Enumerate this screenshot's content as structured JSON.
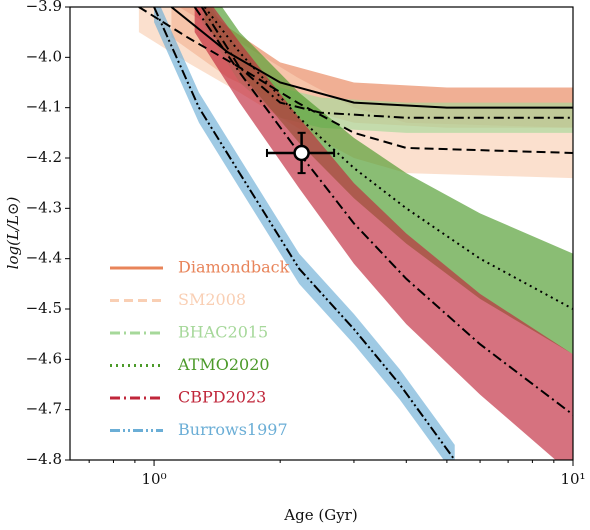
{
  "chart_data": {
    "type": "band-line",
    "xlabel": "Age (Gyr)",
    "ylabel": "log(L/L⊙)",
    "xscale": "log",
    "xlim": [
      0.63,
      10
    ],
    "ylim": [
      -4.8,
      -3.9
    ],
    "xticks": [
      {
        "value": 1,
        "label": "10⁰"
      },
      {
        "value": 10,
        "label": "10¹"
      }
    ],
    "xticks_minor": [
      0.7,
      0.8,
      0.9,
      2,
      3,
      4,
      5,
      6,
      7,
      8,
      9
    ],
    "yticks": [
      {
        "value": -3.9,
        "label": "−3.9"
      },
      {
        "value": -4.0,
        "label": "−4.0"
      },
      {
        "value": -4.1,
        "label": "−4.1"
      },
      {
        "value": -4.2,
        "label": "−4.2"
      },
      {
        "value": -4.3,
        "label": "−4.3"
      },
      {
        "value": -4.4,
        "label": "−4.4"
      },
      {
        "value": -4.5,
        "label": "−4.5"
      },
      {
        "value": -4.6,
        "label": "−4.6"
      },
      {
        "value": -4.7,
        "label": "−4.7"
      },
      {
        "value": -4.8,
        "label": "−4.8"
      }
    ],
    "line_color": "#000000",
    "legend": "lower left",
    "series": [
      {
        "name": "Diamondback",
        "color": "#e8845a",
        "dash": "",
        "x": [
          1.1,
          1.5,
          2.0,
          3.0,
          5.0,
          10
        ],
        "values": [
          -3.9,
          -3.99,
          -4.05,
          -4.09,
          -4.1,
          -4.1
        ],
        "lower": [
          -3.96,
          -4.04,
          -4.09,
          -4.13,
          -4.14,
          -4.14
        ],
        "upper": [
          -3.84,
          -3.94,
          -4.01,
          -4.05,
          -4.06,
          -4.06
        ]
      },
      {
        "name": "SM2008",
        "color": "#f9cfb4",
        "dash": "9 5",
        "x": [
          0.92,
          1.2,
          1.6,
          2.2,
          3.0,
          4.0,
          10
        ],
        "values": [
          -3.9,
          -3.96,
          -4.02,
          -4.09,
          -4.15,
          -4.18,
          -4.19
        ],
        "lower": [
          -3.95,
          -4.01,
          -4.07,
          -4.14,
          -4.2,
          -4.23,
          -4.24
        ],
        "upper": [
          -3.85,
          -3.91,
          -3.97,
          -4.04,
          -4.1,
          -4.13,
          -4.14
        ]
      },
      {
        "name": "BHAC2015",
        "color": "#a6d89a",
        "dash": "10 4 2 4",
        "x": [
          1.3,
          1.6,
          2.0,
          2.5,
          4.0,
          10
        ],
        "values": [
          -3.9,
          -4.02,
          -4.09,
          -4.11,
          -4.12,
          -4.12
        ],
        "lower": [
          -3.93,
          -4.05,
          -4.12,
          -4.14,
          -4.15,
          -4.15
        ],
        "upper": [
          -3.87,
          -3.99,
          -4.06,
          -4.08,
          -4.09,
          -4.09
        ]
      },
      {
        "name": "ATMO2020",
        "color": "#4c9a2a",
        "dash": "2 4",
        "x": [
          1.32,
          1.6,
          2.22,
          3.0,
          4.0,
          6.0,
          10
        ],
        "values": [
          -3.9,
          -3.99,
          -4.12,
          -4.22,
          -4.3,
          -4.4,
          -4.5
        ],
        "lower": [
          -3.93,
          -4.03,
          -4.17,
          -4.28,
          -4.37,
          -4.48,
          -4.59
        ],
        "upper": [
          -3.85,
          -3.95,
          -4.07,
          -4.16,
          -4.23,
          -4.31,
          -4.39
        ]
      },
      {
        "name": "CBPD2023",
        "color": "#c0263a",
        "dash": "10 4 2 4",
        "x": [
          1.25,
          1.6,
          2.22,
          3.0,
          4.0,
          6.0,
          10
        ],
        "values": [
          -3.9,
          -4.03,
          -4.19,
          -4.33,
          -4.44,
          -4.57,
          -4.71
        ],
        "lower": [
          -3.95,
          -4.09,
          -4.26,
          -4.41,
          -4.53,
          -4.67,
          -4.83
        ],
        "upper": [
          -3.85,
          -3.97,
          -4.12,
          -4.25,
          -4.35,
          -4.47,
          -4.59
        ]
      },
      {
        "name": "Burrows1997",
        "color": "#6baed6",
        "dash": "10 3 2 3 2 3",
        "x": [
          1.0,
          1.28,
          1.6,
          2.22,
          3.0,
          3.86,
          5.22
        ],
        "values": [
          -3.9,
          -4.1,
          -4.23,
          -4.42,
          -4.54,
          -4.65,
          -4.8
        ],
        "lower": [
          -3.93,
          -4.13,
          -4.26,
          -4.45,
          -4.57,
          -4.68,
          -4.83
        ],
        "upper": [
          -3.87,
          -4.07,
          -4.2,
          -4.39,
          -4.51,
          -4.62,
          -4.77
        ]
      }
    ],
    "point": {
      "x": 2.25,
      "y": -4.19,
      "xerr_low": 1.86,
      "xerr_high": 2.69,
      "yerr": 0.04
    }
  }
}
